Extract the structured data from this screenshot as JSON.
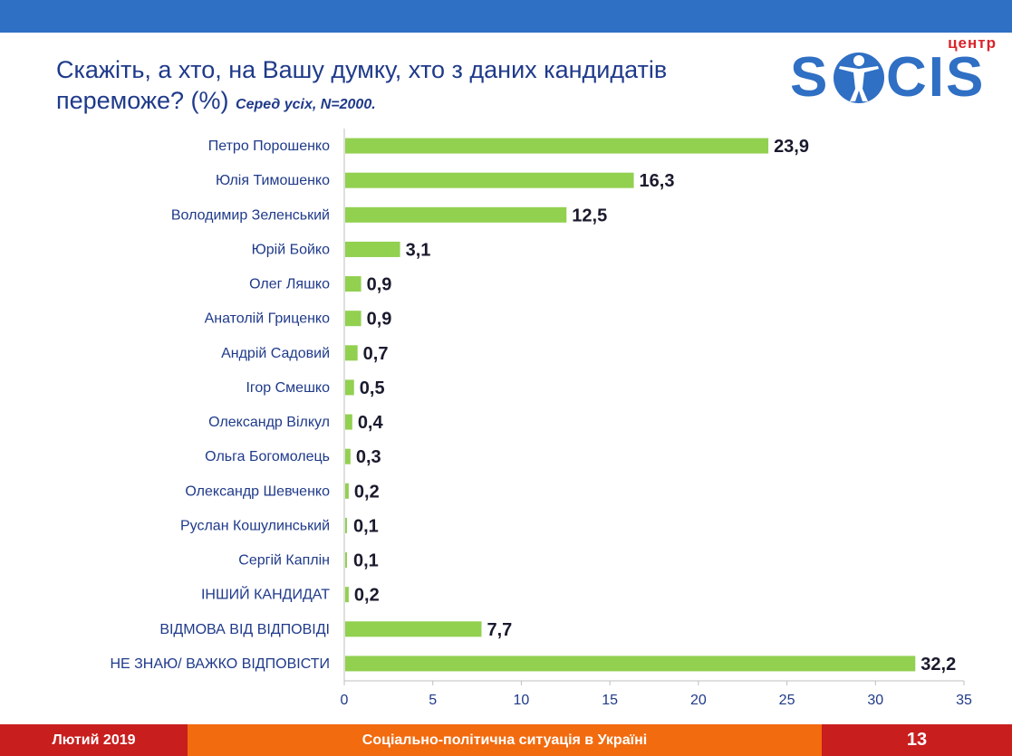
{
  "title": "Скажіть, а хто, на Вашу думку, хто з даних кандидатів переможе? (%)",
  "subtitle": "Серед усіх, N=2000.",
  "logo": {
    "top_text": "центр",
    "brand": "SOCIS"
  },
  "footer": {
    "date": "Лютий 2019",
    "topic": "Соціально-політична ситуація в Україні",
    "page": "13"
  },
  "colors": {
    "bar": "#92d050",
    "header": "#2f6fc4",
    "text": "#1f3a8a",
    "footer_red": "#c81e1e",
    "footer_orange": "#f26b0f"
  },
  "chart_data": {
    "type": "bar",
    "orientation": "horizontal",
    "categories": [
      "Петро Порошенко",
      "Юлія Тимошенко",
      "Володимир Зеленський",
      "Юрій Бойко",
      "Олег Ляшко",
      "Анатолій Гриценко",
      "Андрій Садовий",
      "Ігор Смешко",
      "Олександр Вілкул",
      "Ольга Богомолець",
      "Олександр Шевченко",
      "Руслан Кошулинський",
      "Сергій Каплін",
      "ІНШИЙ КАНДИДАТ",
      "ВІДМОВА ВІД ВІДПОВІДІ",
      "НЕ ЗНАЮ/ ВАЖКО ВІДПОВІСТИ"
    ],
    "values": [
      23.9,
      16.3,
      12.5,
      3.1,
      0.9,
      0.9,
      0.7,
      0.5,
      0.4,
      0.3,
      0.2,
      0.1,
      0.1,
      0.2,
      7.7,
      32.2
    ],
    "value_labels": [
      "23,9",
      "16,3",
      "12,5",
      "3,1",
      "0,9",
      "0,9",
      "0,7",
      "0,5",
      "0,4",
      "0,3",
      "0,2",
      "0,1",
      "0,1",
      "0,2",
      "7,7",
      "32,2"
    ],
    "xlim": [
      0,
      35
    ],
    "xticks": [
      "0",
      "5",
      "10",
      "15",
      "20",
      "25",
      "30",
      "35"
    ],
    "grid": false
  }
}
